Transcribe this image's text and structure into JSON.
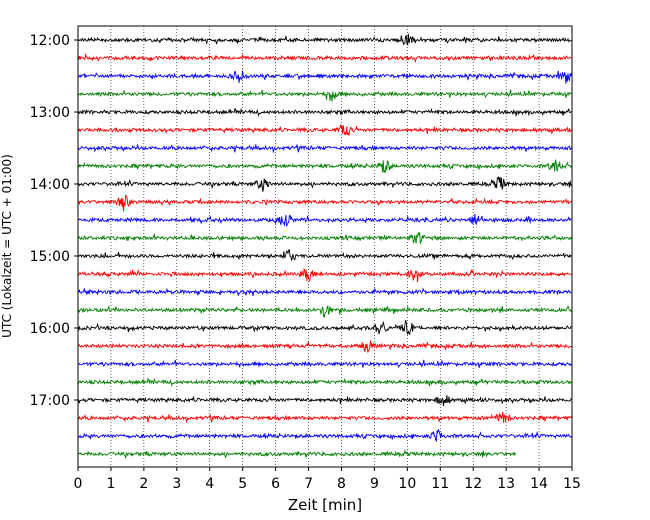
{
  "chart_data": {
    "type": "line",
    "title": "",
    "xlabel": "Zeit  [min]",
    "ylabel": "UTC (Lokalzeit = UTC + 01:00)",
    "xlim": [
      0,
      15
    ],
    "x_ticks": [
      "0",
      "1",
      "2",
      "3",
      "4",
      "5",
      "6",
      "7",
      "8",
      "9",
      "10",
      "11",
      "12",
      "13",
      "14",
      "15"
    ],
    "y_ticks": [
      "12:00",
      "13:00",
      "14:00",
      "15:00",
      "16:00",
      "17:00"
    ],
    "grid": {
      "x": true,
      "y": false,
      "style": "dotted"
    },
    "series_colors": [
      "#000000",
      "#ff0000",
      "#0000ff",
      "#008000"
    ],
    "traces": [
      {
        "start": "12:00",
        "color": "#000000",
        "end_min": 15,
        "events": [
          10
        ]
      },
      {
        "start": "12:15",
        "color": "#ff0000",
        "end_min": 15,
        "events": []
      },
      {
        "start": "12:30",
        "color": "#0000ff",
        "end_min": 15,
        "events": [
          4.9,
          14.8
        ]
      },
      {
        "start": "12:45",
        "color": "#008000",
        "end_min": 15,
        "events": [
          7.7
        ]
      },
      {
        "start": "13:00",
        "color": "#000000",
        "end_min": 15,
        "events": []
      },
      {
        "start": "13:15",
        "color": "#ff0000",
        "end_min": 15,
        "events": [
          8.1
        ]
      },
      {
        "start": "13:30",
        "color": "#0000ff",
        "end_min": 15,
        "events": []
      },
      {
        "start": "13:45",
        "color": "#008000",
        "end_min": 15,
        "events": [
          9.3,
          14.5
        ]
      },
      {
        "start": "14:00",
        "color": "#000000",
        "end_min": 15,
        "events": [
          5.6,
          12.8
        ]
      },
      {
        "start": "14:15",
        "color": "#ff0000",
        "end_min": 15,
        "events": [
          1.4
        ]
      },
      {
        "start": "14:30",
        "color": "#0000ff",
        "end_min": 15,
        "events": [
          6.3,
          12.1
        ]
      },
      {
        "start": "14:45",
        "color": "#008000",
        "end_min": 15,
        "events": [
          10.3
        ]
      },
      {
        "start": "15:00",
        "color": "#000000",
        "end_min": 15,
        "events": [
          6.4
        ]
      },
      {
        "start": "15:15",
        "color": "#ff0000",
        "end_min": 15,
        "events": [
          7.0,
          10.2
        ]
      },
      {
        "start": "15:30",
        "color": "#0000ff",
        "end_min": 15,
        "events": []
      },
      {
        "start": "15:45",
        "color": "#008000",
        "end_min": 15,
        "events": [
          7.5
        ]
      },
      {
        "start": "16:00",
        "color": "#000000",
        "end_min": 15,
        "events": [
          9.2,
          10.0
        ]
      },
      {
        "start": "16:15",
        "color": "#ff0000",
        "end_min": 15,
        "events": [
          8.8
        ]
      },
      {
        "start": "16:30",
        "color": "#0000ff",
        "end_min": 15,
        "events": []
      },
      {
        "start": "16:45",
        "color": "#008000",
        "end_min": 15,
        "events": []
      },
      {
        "start": "17:00",
        "color": "#000000",
        "end_min": 15,
        "events": [
          11.1
        ]
      },
      {
        "start": "17:15",
        "color": "#ff0000",
        "end_min": 15,
        "events": [
          12.9
        ]
      },
      {
        "start": "17:30",
        "color": "#0000ff",
        "end_min": 15,
        "events": [
          10.9
        ]
      },
      {
        "start": "17:45",
        "color": "#008000",
        "end_min": 13.3,
        "events": []
      }
    ]
  }
}
